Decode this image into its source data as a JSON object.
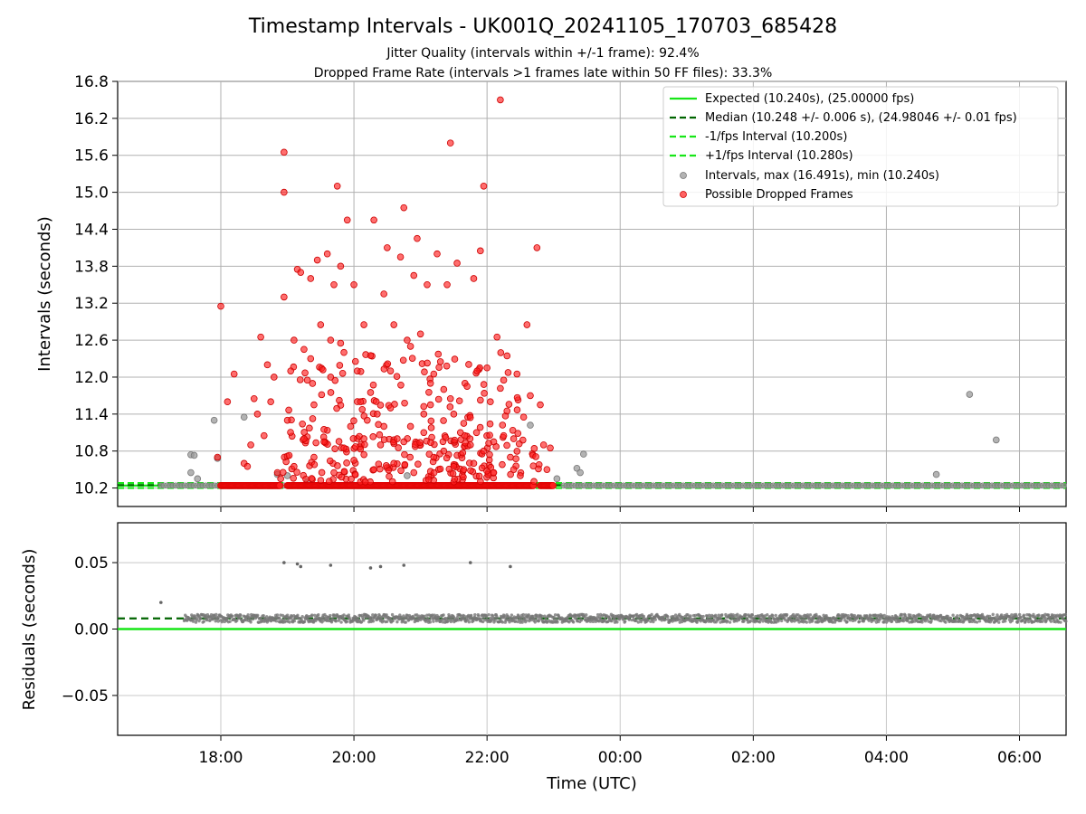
{
  "chart_data": [
    {
      "type": "scatter",
      "title": "Timestamp Intervals - UK001Q_20241105_170703_685428",
      "subtitle_1": "Jitter Quality (intervals within +/-1 frame): 92.4%",
      "subtitle_2": "Dropped Frame Rate (intervals >1 frames late within 50 FF files): 33.3%",
      "ylabel": "Intervals (seconds)",
      "xlim_hours": [
        16.45,
        30.7
      ],
      "ylim": [
        9.9,
        16.8
      ],
      "yticks": [
        "10.2",
        "10.8",
        "11.4",
        "12.0",
        "12.6",
        "13.2",
        "13.8",
        "14.4",
        "15.0",
        "15.6",
        "16.2",
        "16.8"
      ],
      "grid": true,
      "legend_position": "upper right",
      "legend": [
        "Expected (10.240s), (25.00000 fps)",
        "Median (10.248 +/- 0.006 s), (24.98046 +/- 0.01 fps)",
        "-1/fps Interval (10.200s)",
        "+1/fps Interval (10.280s)",
        "Intervals, max (16.491s), min (10.240s)",
        "Possible Dropped Frames"
      ],
      "lines": {
        "expected": 10.24,
        "median": 10.248,
        "minus_interval": 10.2,
        "plus_interval": 10.28
      },
      "baseline_ranges_hours": [
        [
          17.1,
          18.0
        ],
        [
          18.95,
          22.7
        ],
        [
          23.15,
          30.7
        ]
      ],
      "dropped_baseline_ranges_hours": [
        [
          18.0,
          18.9
        ],
        [
          19.0,
          22.7
        ],
        [
          22.8,
          23.0
        ]
      ],
      "intervals_gray": [
        [
          17.55,
          10.74
        ],
        [
          17.6,
          10.73
        ],
        [
          17.55,
          10.45
        ],
        [
          17.65,
          10.35
        ],
        [
          17.9,
          11.3
        ],
        [
          17.95,
          10.68
        ],
        [
          18.35,
          11.35
        ],
        [
          18.85,
          10.42
        ],
        [
          22.65,
          11.22
        ],
        [
          23.05,
          10.35
        ],
        [
          23.35,
          10.52
        ],
        [
          23.4,
          10.45
        ],
        [
          23.45,
          10.75
        ],
        [
          19.0,
          10.4
        ],
        [
          21.5,
          10.95
        ],
        [
          28.75,
          10.42
        ],
        [
          29.25,
          11.72
        ],
        [
          29.65,
          10.98
        ],
        [
          19.3,
          10.3
        ],
        [
          20.8,
          10.4
        ]
      ],
      "dropped_frames": [
        [
          18.0,
          13.15
        ],
        [
          18.1,
          11.6
        ],
        [
          18.2,
          12.05
        ],
        [
          17.95,
          10.7
        ],
        [
          18.35,
          10.6
        ],
        [
          18.4,
          10.55
        ],
        [
          18.45,
          10.9
        ],
        [
          18.5,
          11.65
        ],
        [
          18.55,
          11.4
        ],
        [
          18.6,
          12.65
        ],
        [
          18.65,
          11.05
        ],
        [
          18.7,
          12.2
        ],
        [
          18.75,
          11.6
        ],
        [
          18.8,
          12.0
        ],
        [
          18.85,
          10.45
        ],
        [
          18.9,
          10.35
        ],
        [
          18.95,
          13.3
        ],
        [
          18.95,
          15.65
        ],
        [
          18.95,
          15.0
        ],
        [
          19.0,
          11.3
        ],
        [
          19.05,
          12.1
        ],
        [
          19.1,
          12.6
        ],
        [
          19.15,
          13.75
        ],
        [
          19.2,
          13.7
        ],
        [
          19.25,
          12.45
        ],
        [
          19.3,
          11.95
        ],
        [
          19.35,
          13.6
        ],
        [
          19.4,
          11.55
        ],
        [
          19.45,
          13.9
        ],
        [
          19.5,
          12.85
        ],
        [
          19.55,
          10.95
        ],
        [
          19.6,
          14.0
        ],
        [
          19.65,
          12.6
        ],
        [
          19.7,
          13.5
        ],
        [
          19.75,
          15.1
        ],
        [
          19.8,
          12.55
        ],
        [
          19.8,
          13.8
        ],
        [
          19.85,
          12.4
        ],
        [
          19.9,
          14.55
        ],
        [
          19.95,
          11.2
        ],
        [
          20.0,
          13.5
        ],
        [
          20.05,
          12.1
        ],
        [
          20.1,
          11.6
        ],
        [
          20.15,
          12.85
        ],
        [
          20.2,
          11.3
        ],
        [
          20.25,
          12.35
        ],
        [
          20.3,
          14.55
        ],
        [
          20.35,
          11.4
        ],
        [
          20.4,
          10.9
        ],
        [
          20.45,
          13.35
        ],
        [
          20.5,
          14.1
        ],
        [
          20.55,
          12.1
        ],
        [
          20.6,
          12.85
        ],
        [
          20.65,
          11.0
        ],
        [
          20.7,
          13.95
        ],
        [
          20.75,
          14.75
        ],
        [
          20.8,
          12.6
        ],
        [
          20.85,
          11.2
        ],
        [
          20.9,
          13.65
        ],
        [
          20.95,
          14.25
        ],
        [
          21.0,
          12.7
        ],
        [
          21.05,
          11.4
        ],
        [
          21.1,
          13.5
        ],
        [
          21.15,
          11.55
        ],
        [
          21.2,
          12.05
        ],
        [
          21.25,
          14.0
        ],
        [
          21.3,
          12.25
        ],
        [
          21.35,
          11.8
        ],
        [
          21.4,
          13.5
        ],
        [
          21.45,
          15.8
        ],
        [
          21.5,
          11.4
        ],
        [
          21.55,
          13.85
        ],
        [
          21.6,
          11.1
        ],
        [
          21.65,
          10.5
        ],
        [
          21.7,
          11.85
        ],
        [
          21.75,
          10.9
        ],
        [
          21.8,
          13.6
        ],
        [
          21.85,
          12.1
        ],
        [
          21.9,
          14.05
        ],
        [
          21.95,
          15.1
        ],
        [
          22.0,
          12.15
        ],
        [
          22.05,
          11.6
        ],
        [
          22.1,
          10.95
        ],
        [
          22.15,
          12.65
        ],
        [
          22.2,
          16.5
        ],
        [
          22.25,
          11.95
        ],
        [
          22.3,
          11.45
        ],
        [
          22.35,
          10.7
        ],
        [
          22.4,
          11.0
        ],
        [
          22.45,
          12.05
        ],
        [
          22.5,
          10.4
        ],
        [
          22.55,
          11.35
        ],
        [
          22.6,
          12.85
        ],
        [
          22.65,
          11.7
        ],
        [
          22.75,
          14.1
        ],
        [
          22.8,
          11.55
        ],
        [
          22.85,
          10.9
        ],
        [
          22.9,
          10.5
        ],
        [
          22.95,
          10.85
        ],
        [
          19.1,
          10.55
        ],
        [
          19.4,
          10.7
        ],
        [
          19.7,
          10.45
        ],
        [
          20.0,
          10.65
        ],
        [
          20.3,
          10.5
        ],
        [
          20.6,
          10.6
        ],
        [
          20.9,
          10.45
        ],
        [
          21.2,
          10.7
        ],
        [
          21.5,
          10.55
        ],
        [
          21.8,
          10.6
        ],
        [
          22.1,
          10.45
        ],
        [
          22.4,
          10.5
        ],
        [
          19.25,
          11.0
        ],
        [
          19.55,
          11.15
        ],
        [
          19.85,
          10.85
        ],
        [
          20.15,
          11.0
        ],
        [
          20.45,
          11.2
        ],
        [
          20.75,
          10.95
        ],
        [
          21.05,
          11.1
        ],
        [
          21.35,
          10.8
        ],
        [
          21.65,
          11.25
        ],
        [
          21.95,
          10.8
        ],
        [
          22.25,
          11.05
        ],
        [
          19.35,
          12.3
        ],
        [
          19.65,
          12.0
        ],
        [
          20.25,
          11.75
        ],
        [
          20.55,
          11.5
        ],
        [
          20.85,
          12.5
        ],
        [
          21.15,
          11.9
        ],
        [
          21.45,
          11.65
        ]
      ],
      "dropped_lower_band_hours": [
        18.0,
        23.0
      ]
    },
    {
      "type": "scatter",
      "xlabel": "Time (UTC)",
      "ylabel": "Residuals (seconds)",
      "xlim_hours": [
        16.45,
        30.7
      ],
      "ylim": [
        -0.08,
        0.08
      ],
      "yticks": [
        "−0.05",
        "0.00",
        "0.05"
      ],
      "xticks": [
        "18:00",
        "20:00",
        "22:00",
        "00:00",
        "02:00",
        "04:00",
        "06:00"
      ],
      "grid": true,
      "lines": {
        "zero": 0.0,
        "median_residual": 0.008
      },
      "residual_band": {
        "x_range_hours": [
          17.1,
          30.7
        ],
        "center": 0.008,
        "spread": 0.003
      },
      "outliers": [
        [
          17.1,
          0.02
        ],
        [
          18.95,
          0.05
        ],
        [
          19.15,
          0.049
        ],
        [
          19.2,
          0.047
        ],
        [
          19.65,
          0.048
        ],
        [
          20.25,
          0.046
        ],
        [
          20.4,
          0.047
        ],
        [
          20.75,
          0.048
        ],
        [
          21.75,
          0.05
        ],
        [
          22.35,
          0.047
        ]
      ]
    }
  ]
}
